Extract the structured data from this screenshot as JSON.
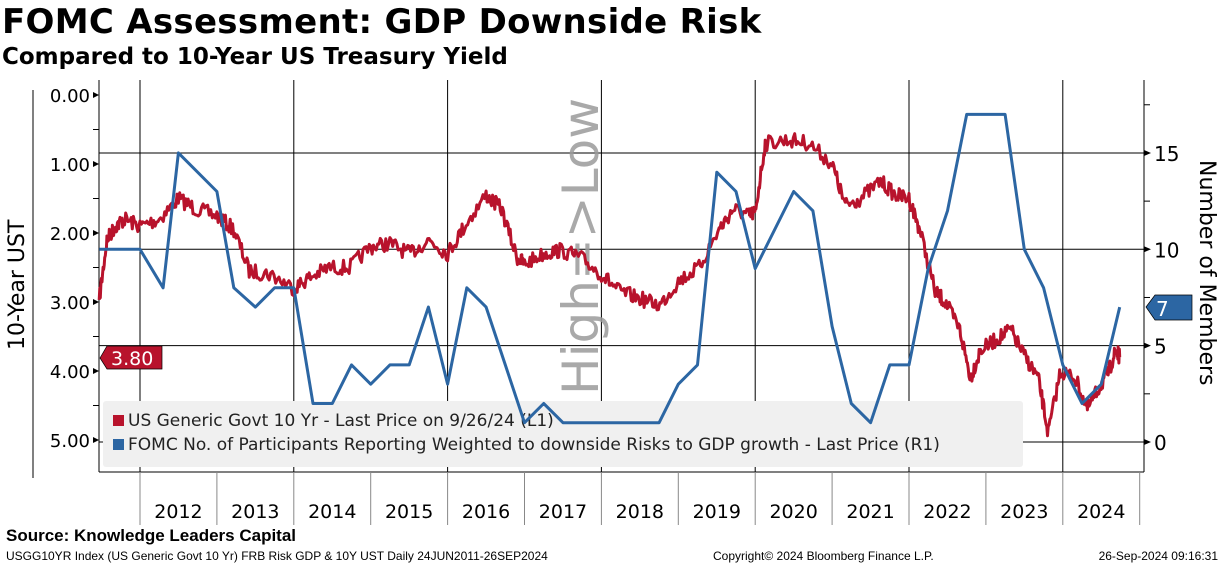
{
  "header": {
    "title": "FOMC Assessment: GDP Downside Risk",
    "subtitle": "Compared to 10-Year US Treasury Yield"
  },
  "footer": {
    "source": "Source: Knowledge Leaders Capital",
    "description": "USGG10YR Index (US Generic Govt 10 Yr) FRB Risk GDP & 10Y UST  Daily 24JUN2011-26SEP2024",
    "copyright": "Copyright© 2024 Bloomberg Finance L.P.",
    "timestamp": "26-Sep-2024 09:16:31"
  },
  "chart_data": {
    "type": "line",
    "title": "FOMC Assessment: GDP Downside Risk",
    "subtitle": "Compared to 10-Year US Treasury Yield",
    "ylabel_left": "10-Year UST",
    "ylabel_right": "Number of Members",
    "watermark": "High=>Low",
    "ylim_left": [
      0,
      5
    ],
    "left_inverted": true,
    "left_ticks": [
      "0.00",
      "1.00",
      "2.00",
      "3.00",
      "4.00",
      "5.00"
    ],
    "ylim_right": [
      0,
      17.5
    ],
    "right_ticks": [
      "0",
      "5",
      "10",
      "15"
    ],
    "x_range": [
      2011.47,
      2024.74
    ],
    "x_labels": [
      "2012",
      "2013",
      "2014",
      "2015",
      "2016",
      "2017",
      "2018",
      "2019",
      "2020",
      "2021",
      "2022",
      "2023",
      "2024"
    ],
    "legend": {
      "placement": "bottom-left",
      "entries": [
        "US Generic Govt 10 Yr - Last Price on 9/26/24 (L1)",
        "FOMC No. of Participants Reporting Weighted to downside Risks to GDP growth - Last Price (R1)"
      ]
    },
    "last_values": {
      "left": "3.80",
      "right": "7"
    },
    "colors": {
      "yield": "#b8132c",
      "members": "#2c66a3"
    },
    "series": [
      {
        "name": "US Generic Govt 10 Yr",
        "axis": "left",
        "x": [
          2011.47,
          2011.57,
          2011.68,
          2011.8,
          2012.0,
          2012.25,
          2012.5,
          2012.72,
          2013.0,
          2013.22,
          2013.42,
          2013.7,
          2014.0,
          2014.2,
          2014.46,
          2014.72,
          2015.0,
          2015.25,
          2015.5,
          2015.76,
          2016.0,
          2016.22,
          2016.5,
          2016.7,
          2016.9,
          2017.0,
          2017.25,
          2017.46,
          2017.72,
          2018.0,
          2018.24,
          2018.5,
          2018.76,
          2019.0,
          2019.27,
          2019.53,
          2019.72,
          2019.92,
          2020.0,
          2020.13,
          2020.44,
          2020.7,
          2021.0,
          2021.17,
          2021.37,
          2021.63,
          2021.82,
          2022.0,
          2022.14,
          2022.34,
          2022.47,
          2022.66,
          2022.8,
          2022.93,
          2023.13,
          2023.32,
          2023.51,
          2023.68,
          2023.81,
          2023.97,
          2024.16,
          2024.32,
          2024.47,
          2024.6,
          2024.69,
          2024.74
        ],
        "values": [
          2.97,
          2.1,
          1.9,
          1.8,
          1.9,
          1.8,
          1.5,
          1.65,
          1.75,
          1.95,
          2.55,
          2.6,
          2.8,
          2.65,
          2.5,
          2.5,
          2.2,
          2.15,
          2.3,
          2.1,
          2.3,
          1.9,
          1.45,
          1.65,
          2.35,
          2.45,
          2.3,
          2.25,
          2.35,
          2.6,
          2.85,
          2.95,
          3.05,
          2.7,
          2.5,
          1.95,
          1.65,
          1.75,
          1.7,
          0.7,
          0.65,
          0.7,
          1.0,
          1.6,
          1.5,
          1.25,
          1.45,
          1.5,
          1.95,
          2.85,
          3.0,
          3.4,
          4.1,
          3.7,
          3.55,
          3.4,
          3.8,
          4.1,
          4.9,
          4.0,
          4.1,
          4.55,
          4.25,
          4.0,
          3.7,
          3.8
        ]
      },
      {
        "name": "FOMC No. of Participants Reporting Weighted to downside Risks to GDP growth",
        "axis": "right",
        "x": [
          2011.47,
          2012.0,
          2012.3,
          2012.5,
          2013.0,
          2013.22,
          2013.5,
          2013.75,
          2014.0,
          2014.25,
          2014.5,
          2014.75,
          2015.0,
          2015.25,
          2015.5,
          2015.75,
          2016.0,
          2016.25,
          2016.5,
          2016.75,
          2017.0,
          2017.25,
          2017.5,
          2018.0,
          2018.5,
          2018.75,
          2019.0,
          2019.25,
          2019.5,
          2019.75,
          2020.0,
          2020.5,
          2020.75,
          2021.0,
          2021.25,
          2021.5,
          2021.75,
          2022.0,
          2022.25,
          2022.5,
          2022.75,
          2023.25,
          2023.5,
          2023.75,
          2024.0,
          2024.25,
          2024.5,
          2024.74
        ],
        "values": [
          10,
          10,
          8,
          15,
          13,
          8,
          7,
          8,
          8,
          2,
          2,
          4,
          3,
          4,
          4,
          7,
          3,
          8,
          7,
          4,
          1,
          2,
          1,
          1,
          1,
          1,
          3,
          4,
          14,
          13,
          9,
          13,
          12,
          6,
          2,
          1,
          4,
          4,
          9,
          12,
          17,
          17,
          10,
          8,
          4,
          2,
          3,
          7
        ]
      }
    ]
  }
}
